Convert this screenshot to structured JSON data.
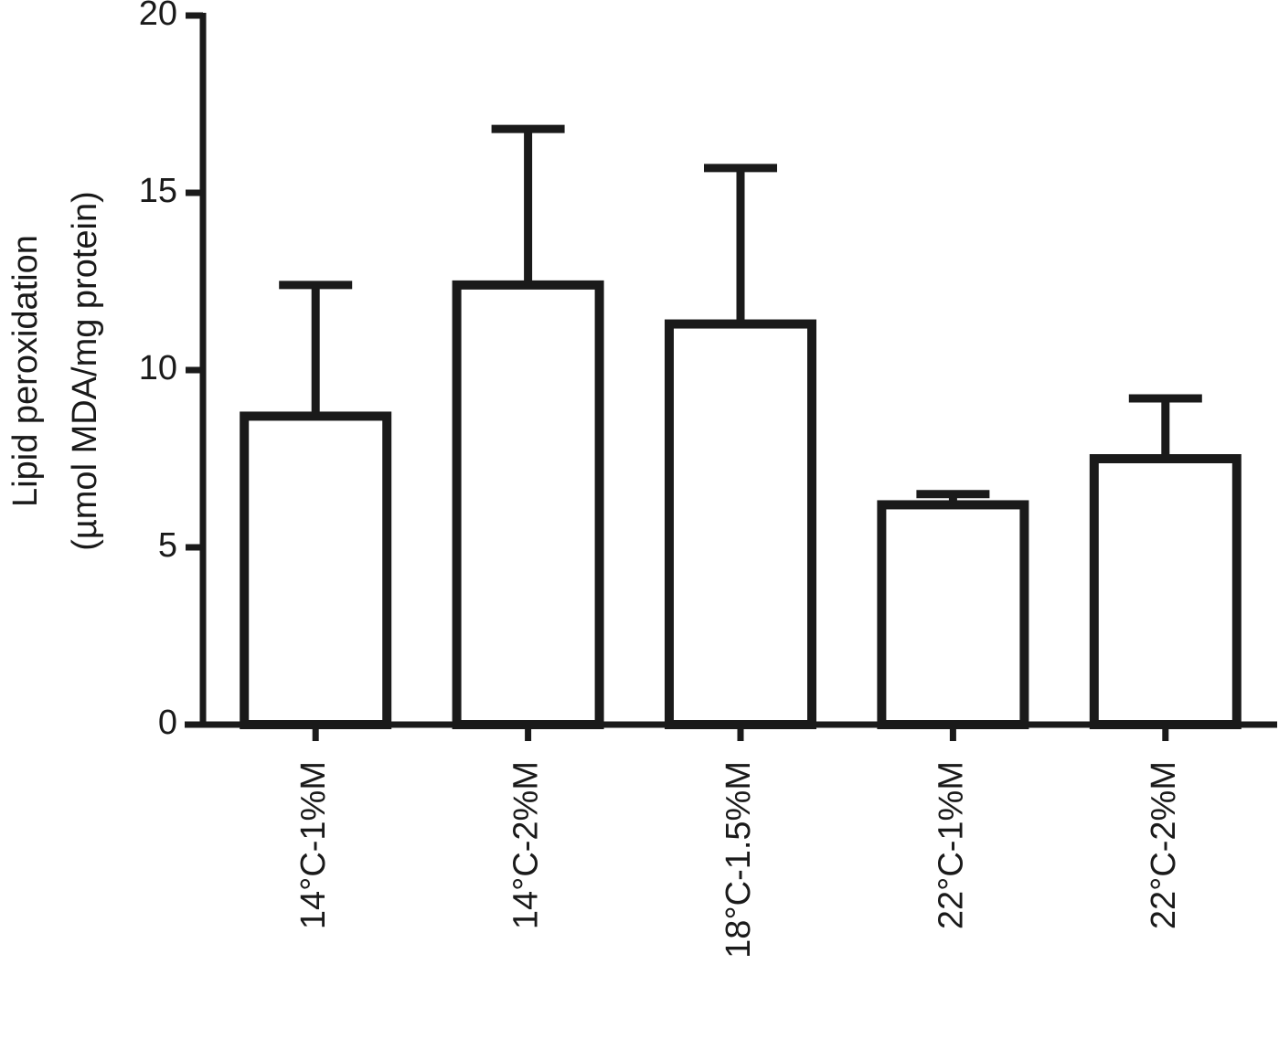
{
  "chart_data": {
    "type": "bar",
    "y_label_lines": [
      "Lipid peroxidation",
      "(µmol  MDA/mg protein)"
    ],
    "categories": [
      "14°C-1%M",
      "14°C-2%M",
      "18°C-1.5%M",
      "22°C-1%M",
      "22°C-2%M"
    ],
    "values": [
      8.7,
      12.4,
      11.3,
      6.2,
      7.5
    ],
    "errors": [
      3.7,
      4.4,
      4.4,
      0.3,
      1.7
    ],
    "color": "#ffffff",
    "ylim": [
      0,
      20
    ],
    "yticks": [
      0,
      5,
      10,
      15,
      20
    ],
    "grid": false
  }
}
